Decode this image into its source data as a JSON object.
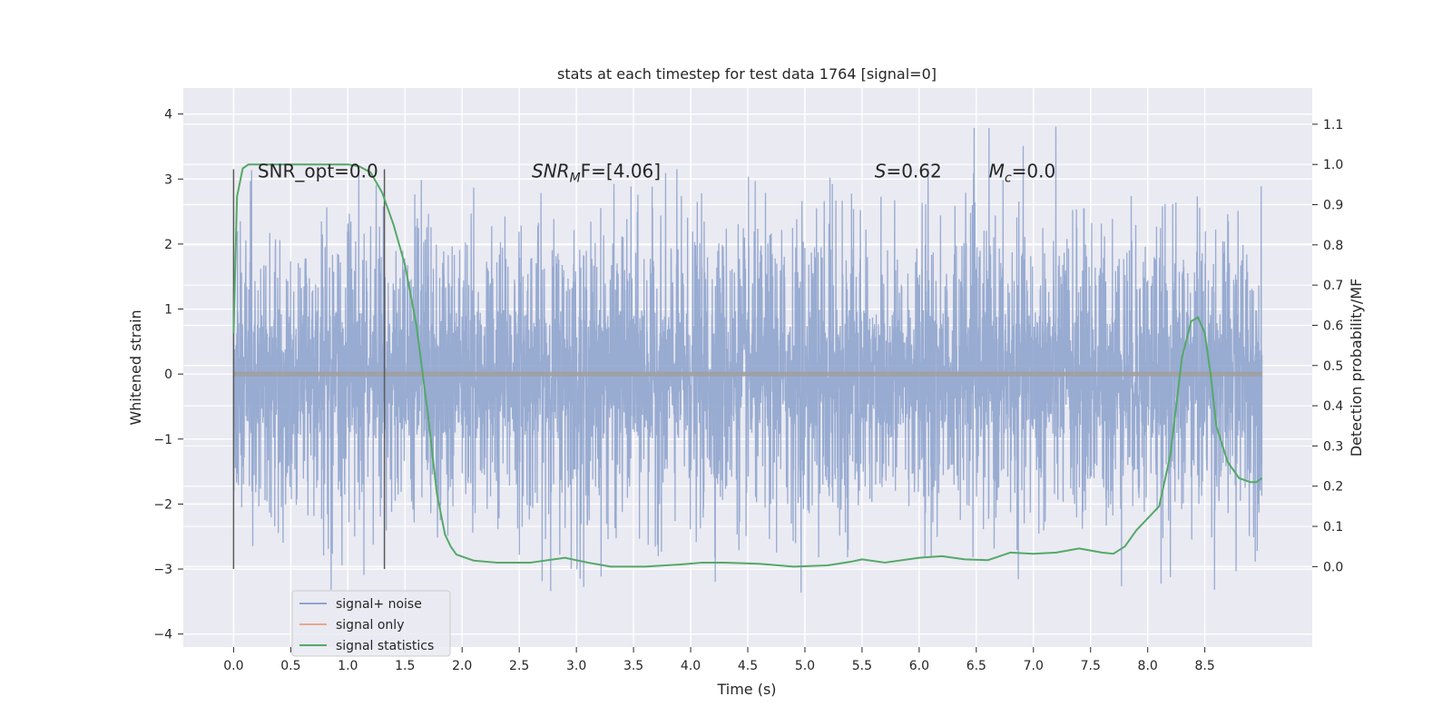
{
  "chart_data": {
    "type": "line",
    "title": "stats at each timestep for test data 1764 [signal=0]",
    "xlabel": "Time (s)",
    "ylabel": "Whitened strain",
    "y2label": "Detection probability/MF",
    "xlim": [
      -0.44,
      9.44
    ],
    "ylim": [
      -4.2,
      4.4
    ],
    "y2lim": [
      -0.2,
      1.19
    ],
    "x_ticks": [
      "0.0",
      "0.5",
      "1.0",
      "1.5",
      "2.0",
      "2.5",
      "3.0",
      "3.5",
      "4.0",
      "4.5",
      "5.0",
      "5.5",
      "6.0",
      "6.5",
      "7.0",
      "7.5",
      "8.0",
      "8.5"
    ],
    "y_ticks": [
      "4",
      "3",
      "2",
      "1",
      "0",
      "−1",
      "−2",
      "−3",
      "−4"
    ],
    "y2_ticks": [
      "0.0",
      "0.1",
      "0.2",
      "0.3",
      "0.4",
      "0.5",
      "0.6",
      "0.7",
      "0.8",
      "0.9",
      "1.0",
      "1.1"
    ],
    "series": [
      {
        "name": "signal+ noise",
        "color": "#8fa4cd",
        "x_range": [
          0.0,
          9.0
        ],
        "y_envelope": [
          -3.4,
          4.0
        ],
        "y_dense_band": [
          -1.3,
          1.3
        ],
        "description_values": "whitened noise, dense between about −1.3 and 1.3"
      },
      {
        "name": "signal only",
        "color": "#e8a88d",
        "x": [
          0.0,
          9.0
        ],
        "y": [
          0.0,
          0.0
        ]
      },
      {
        "name": "signal statistics",
        "color": "#55a868",
        "axis": "right",
        "x": [
          0.0,
          0.03,
          0.08,
          0.13,
          0.2,
          0.3,
          0.5,
          0.8,
          1.0,
          1.1,
          1.2,
          1.3,
          1.4,
          1.5,
          1.6,
          1.7,
          1.78,
          1.85,
          1.9,
          1.95,
          2.0,
          2.1,
          2.3,
          2.6,
          2.9,
          3.1,
          3.3,
          3.6,
          3.9,
          4.1,
          4.3,
          4.6,
          4.9,
          5.2,
          5.4,
          5.5,
          5.7,
          6.0,
          6.2,
          6.4,
          6.6,
          6.8,
          7.0,
          7.2,
          7.4,
          7.6,
          7.7,
          7.8,
          7.9,
          8.0,
          8.1,
          8.2,
          8.3,
          8.38,
          8.44,
          8.5,
          8.55,
          8.6,
          8.7,
          8.8,
          8.9,
          8.95,
          9.0
        ],
        "y": [
          0.58,
          0.92,
          0.99,
          1.0,
          1.0,
          1.0,
          1.0,
          1.0,
          1.0,
          0.995,
          0.98,
          0.93,
          0.85,
          0.75,
          0.6,
          0.38,
          0.18,
          0.08,
          0.05,
          0.03,
          0.025,
          0.015,
          0.01,
          0.01,
          0.022,
          0.01,
          0.0,
          0.0,
          0.005,
          0.01,
          0.01,
          0.007,
          0.0,
          0.003,
          0.012,
          0.018,
          0.01,
          0.022,
          0.026,
          0.018,
          0.016,
          0.035,
          0.032,
          0.035,
          0.045,
          0.035,
          0.032,
          0.05,
          0.09,
          0.12,
          0.15,
          0.28,
          0.52,
          0.61,
          0.62,
          0.58,
          0.48,
          0.35,
          0.26,
          0.22,
          0.21,
          0.21,
          0.22
        ]
      }
    ],
    "vlines": [
      {
        "x": 0.0,
        "y_data_range": [
          -3.0,
          3.15
        ]
      },
      {
        "x": 1.32,
        "y_data_range": [
          -3.0,
          3.15
        ]
      }
    ],
    "annotations": [
      {
        "text": "SNR_opt=0.0",
        "x": 0.21,
        "y": 3.12,
        "italic": false
      },
      {
        "text": "SNR",
        "sub": "M",
        "after": "F=[4.06]",
        "x": 2.61,
        "y": 3.12
      },
      {
        "text": "S",
        "after": "=0.62",
        "x": 5.61,
        "y": 3.12
      },
      {
        "text": "M",
        "sub": "c",
        "after": "=0.0",
        "x": 6.61,
        "y": 3.12
      }
    ],
    "legend": {
      "location": "lower-left"
    },
    "grid": true
  }
}
